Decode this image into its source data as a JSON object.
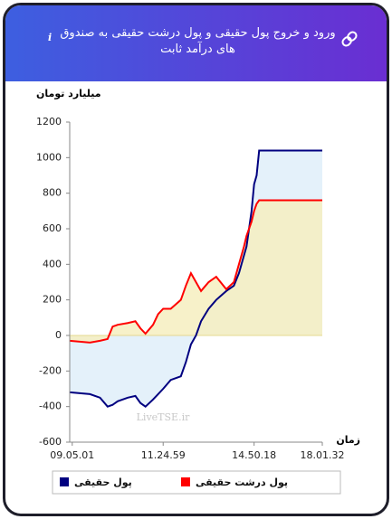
{
  "header": {
    "title": "ورود و خروج پول حقیقی و پول درشت حقیقی به صندوق های درآمد ثابت"
  },
  "chart_data": {
    "type": "line",
    "ylabel": "میلیارد تومان",
    "xlabel": "زمان",
    "watermark": "LiveTSE.ir",
    "x": [
      0,
      8,
      12,
      15,
      17,
      19,
      23,
      26,
      28,
      30,
      33,
      35,
      37,
      40,
      44,
      46,
      48,
      50,
      52,
      55,
      58,
      62,
      65,
      67,
      69,
      70,
      72,
      73,
      74,
      75,
      100
    ],
    "xlim": [
      0,
      100
    ],
    "xticks": [
      {
        "value": 1,
        "label": "09.05.01"
      },
      {
        "value": 37,
        "label": "11.24.59"
      },
      {
        "value": 73,
        "label": "14.50.18"
      },
      {
        "value": 100,
        "label": "18.01.32"
      }
    ],
    "ylim": [
      -600,
      1200
    ],
    "yticks": [
      -600,
      -400,
      -200,
      0,
      200,
      400,
      600,
      800,
      1000,
      1200
    ],
    "series": [
      {
        "name": "پول حقیقی",
        "color": "#000080",
        "fill": "#e4f1fa",
        "values": [
          -320,
          -330,
          -350,
          -400,
          -390,
          -370,
          -350,
          -340,
          -380,
          -400,
          -360,
          -330,
          -300,
          -250,
          -230,
          -150,
          -50,
          0,
          80,
          150,
          200,
          250,
          280,
          350,
          450,
          500,
          700,
          850,
          900,
          1040,
          1040
        ]
      },
      {
        "name": "پول درشت حقیقی",
        "color": "#ff0000",
        "fill": "#f6efbf",
        "values": [
          -30,
          -40,
          -30,
          -20,
          50,
          60,
          70,
          80,
          40,
          10,
          60,
          120,
          150,
          150,
          200,
          280,
          350,
          300,
          250,
          300,
          330,
          260,
          300,
          400,
          500,
          560,
          640,
          700,
          740,
          760,
          760
        ]
      }
    ]
  }
}
